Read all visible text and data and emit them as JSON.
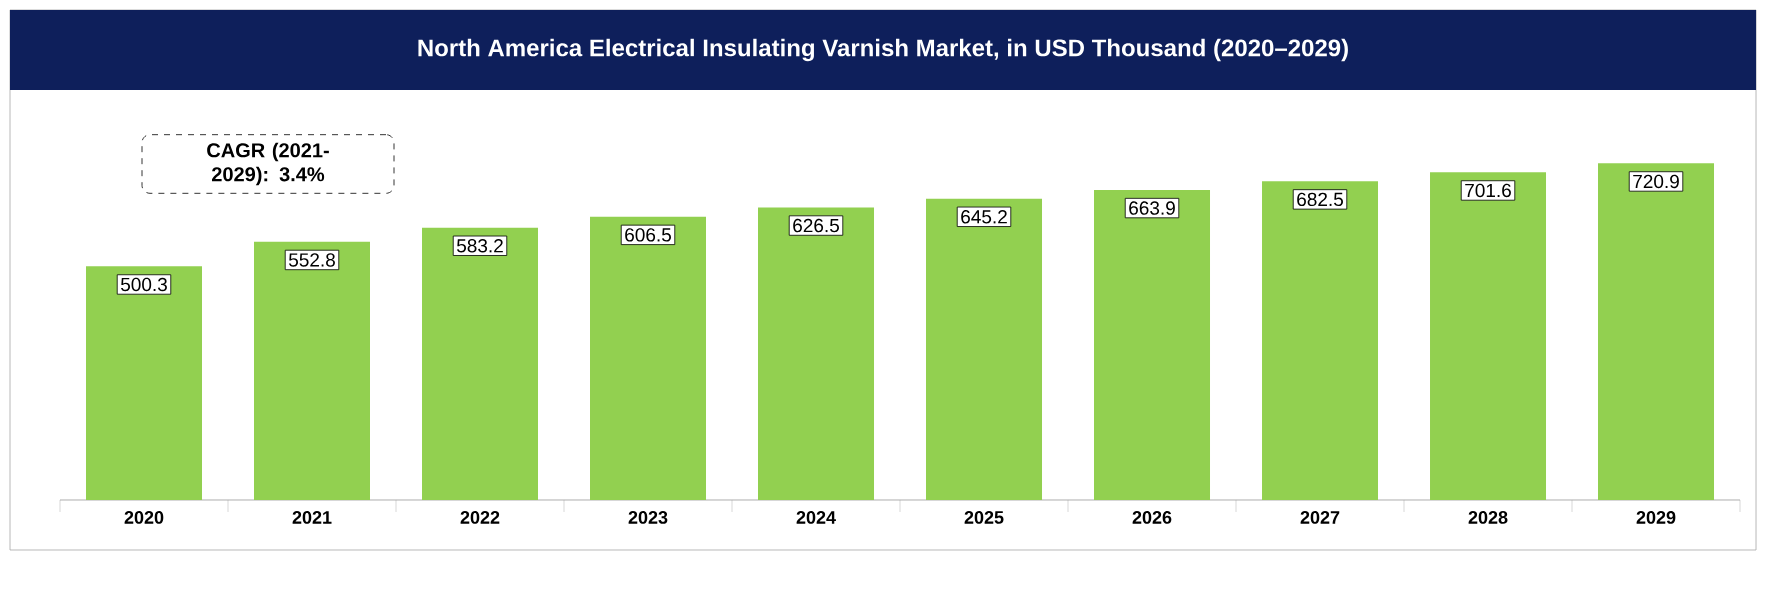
{
  "chart_data": {
    "type": "bar",
    "title": "North America Electrical Insulating Varnish Market, in USD Thousand (2020–2029)",
    "categories": [
      "2020",
      "2021",
      "2022",
      "2023",
      "2024",
      "2025",
      "2026",
      "2027",
      "2028",
      "2029"
    ],
    "values": [
      500.3,
      552.8,
      583.2,
      606.5,
      626.5,
      645.2,
      663.9,
      682.5,
      701.6,
      720.9
    ],
    "color": "#92d050",
    "data_labels": true,
    "annotations": [
      "CAGR (2021-2029): 3.4%"
    ]
  }
}
